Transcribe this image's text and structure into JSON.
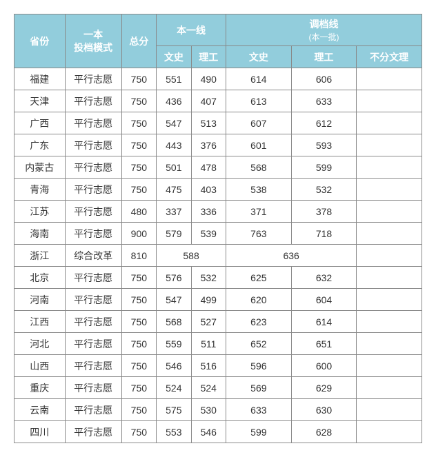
{
  "headers": {
    "province": "省份",
    "mode": "一本\n投档模式",
    "total": "总分",
    "tier1": "本一线",
    "cutoff": "调档线",
    "cutoff_sub": "(本一批)",
    "wenshi": "文史",
    "ligong": "理工",
    "undivided": "不分文理"
  },
  "colors": {
    "header_bg": "#92cddc",
    "header_fg": "#ffffff",
    "border": "#888888",
    "cell_fg": "#333333"
  },
  "rows": [
    {
      "prov": "福建",
      "mode": "平行志愿",
      "total": "750",
      "ws1": "551",
      "lg1": "490",
      "ws2": "614",
      "lg2": "606",
      "und": ""
    },
    {
      "prov": "天津",
      "mode": "平行志愿",
      "total": "750",
      "ws1": "436",
      "lg1": "407",
      "ws2": "613",
      "lg2": "633",
      "und": ""
    },
    {
      "prov": "广西",
      "mode": "平行志愿",
      "total": "750",
      "ws1": "547",
      "lg1": "513",
      "ws2": "607",
      "lg2": "612",
      "und": ""
    },
    {
      "prov": "广东",
      "mode": "平行志愿",
      "total": "750",
      "ws1": "443",
      "lg1": "376",
      "ws2": "601",
      "lg2": "593",
      "und": ""
    },
    {
      "prov": "内蒙古",
      "mode": "平行志愿",
      "total": "750",
      "ws1": "501",
      "lg1": "478",
      "ws2": "568",
      "lg2": "599",
      "und": ""
    },
    {
      "prov": "青海",
      "mode": "平行志愿",
      "total": "750",
      "ws1": "475",
      "lg1": "403",
      "ws2": "538",
      "lg2": "532",
      "und": ""
    },
    {
      "prov": "江苏",
      "mode": "平行志愿",
      "total": "480",
      "ws1": "337",
      "lg1": "336",
      "ws2": "371",
      "lg2": "378",
      "und": ""
    },
    {
      "prov": "海南",
      "mode": "平行志愿",
      "total": "900",
      "ws1": "579",
      "lg1": "539",
      "ws2": "763",
      "lg2": "718",
      "und": ""
    },
    {
      "prov": "浙江",
      "mode": "综合改革",
      "total": "810",
      "merged_tier": "588",
      "merged_cutoff": "636",
      "und": "",
      "special": true
    },
    {
      "prov": "北京",
      "mode": "平行志愿",
      "total": "750",
      "ws1": "576",
      "lg1": "532",
      "ws2": "625",
      "lg2": "632",
      "und": ""
    },
    {
      "prov": "河南",
      "mode": "平行志愿",
      "total": "750",
      "ws1": "547",
      "lg1": "499",
      "ws2": "620",
      "lg2": "604",
      "und": ""
    },
    {
      "prov": "江西",
      "mode": "平行志愿",
      "total": "750",
      "ws1": "568",
      "lg1": "527",
      "ws2": "623",
      "lg2": "614",
      "und": ""
    },
    {
      "prov": "河北",
      "mode": "平行志愿",
      "total": "750",
      "ws1": "559",
      "lg1": "511",
      "ws2": "652",
      "lg2": "651",
      "und": ""
    },
    {
      "prov": "山西",
      "mode": "平行志愿",
      "total": "750",
      "ws1": "546",
      "lg1": "516",
      "ws2": "596",
      "lg2": "600",
      "und": ""
    },
    {
      "prov": "重庆",
      "mode": "平行志愿",
      "total": "750",
      "ws1": "524",
      "lg1": "524",
      "ws2": "569",
      "lg2": "629",
      "und": ""
    },
    {
      "prov": "云南",
      "mode": "平行志愿",
      "total": "750",
      "ws1": "575",
      "lg1": "530",
      "ws2": "633",
      "lg2": "630",
      "und": ""
    },
    {
      "prov": "四川",
      "mode": "平行志愿",
      "total": "750",
      "ws1": "553",
      "lg1": "546",
      "ws2": "599",
      "lg2": "628",
      "und": ""
    }
  ]
}
